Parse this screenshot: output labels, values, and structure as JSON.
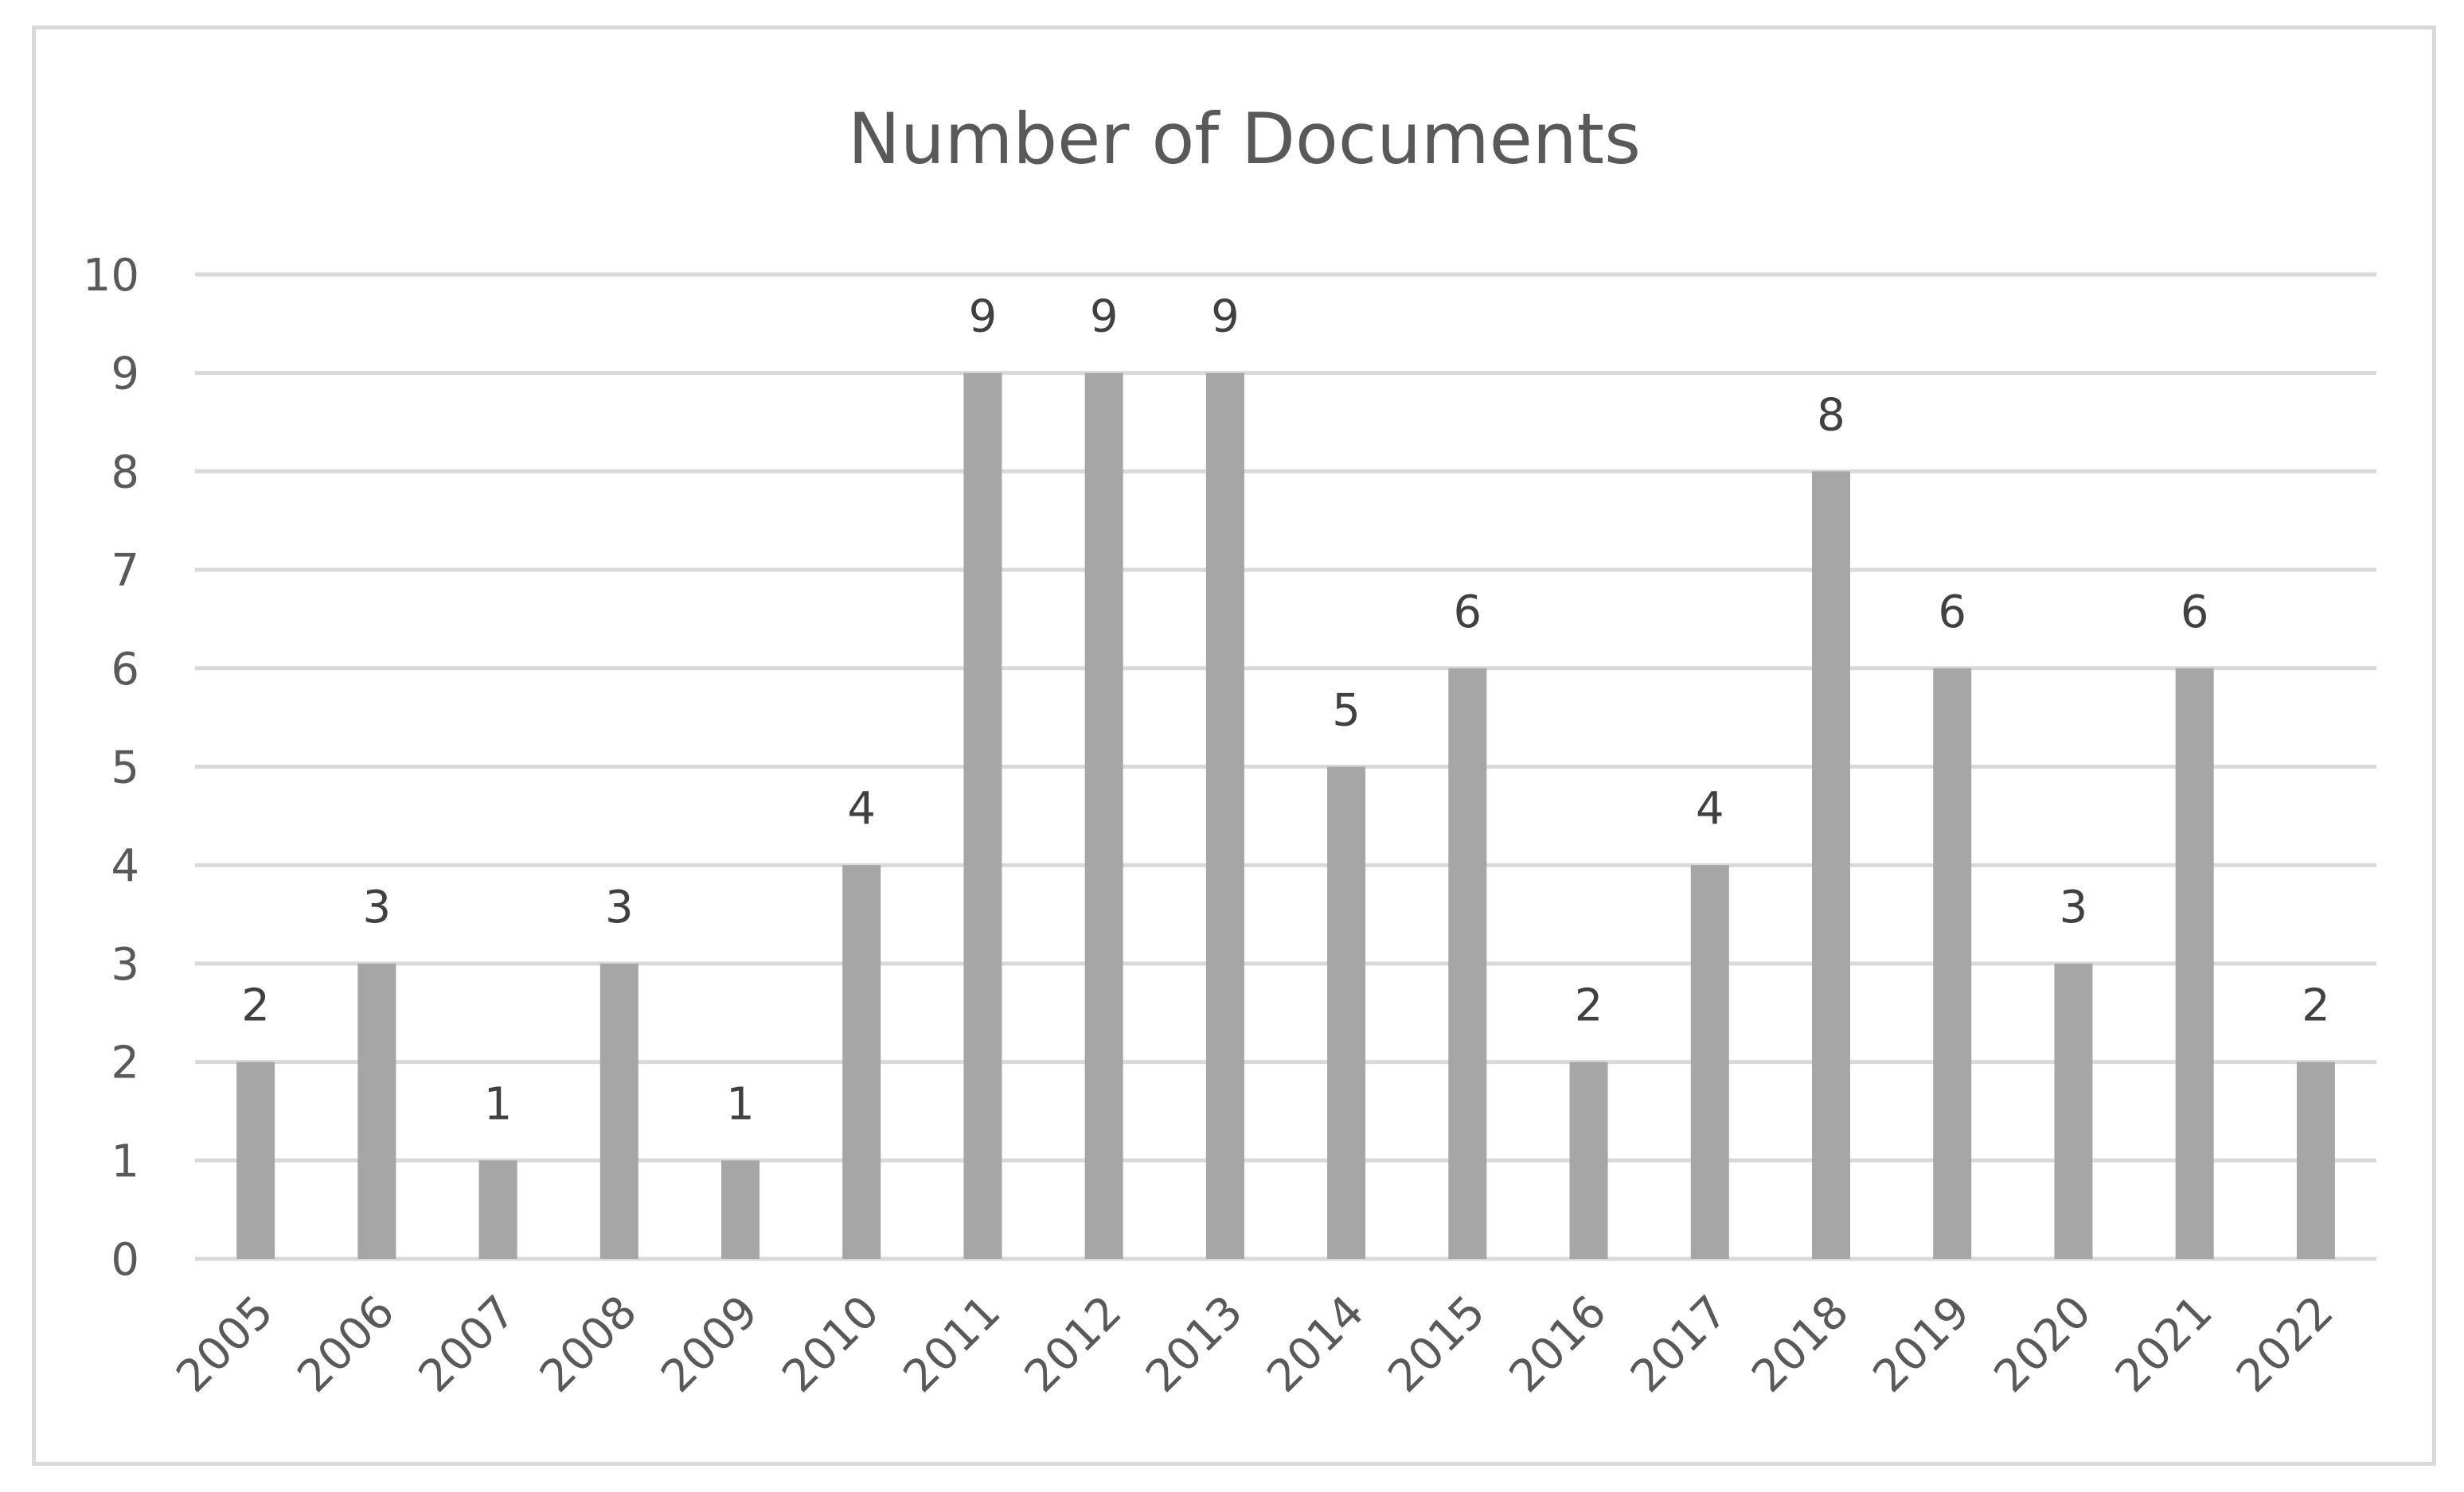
{
  "chart_data": {
    "type": "bar",
    "title": "Number of Documents",
    "xlabel": "",
    "ylabel": "",
    "categories": [
      "2005",
      "2006",
      "2007",
      "2008",
      "2009",
      "2010",
      "2011",
      "2012",
      "2013",
      "2014",
      "2015",
      "2016",
      "2017",
      "2018",
      "2019",
      "2020",
      "2021",
      "2022"
    ],
    "values": [
      2,
      3,
      1,
      3,
      1,
      4,
      9,
      9,
      9,
      5,
      6,
      2,
      4,
      8,
      6,
      3,
      6,
      2
    ],
    "ylim": [
      0,
      10
    ],
    "yticks": [
      0,
      1,
      2,
      3,
      4,
      5,
      6,
      7,
      8,
      9,
      10
    ],
    "grid": true,
    "legend": "none",
    "data_labels": true,
    "colors": {
      "bar": "#a6a6a6",
      "grid": "#d9d9d9",
      "text": "#595959",
      "frame": "#d9d9d9"
    }
  }
}
